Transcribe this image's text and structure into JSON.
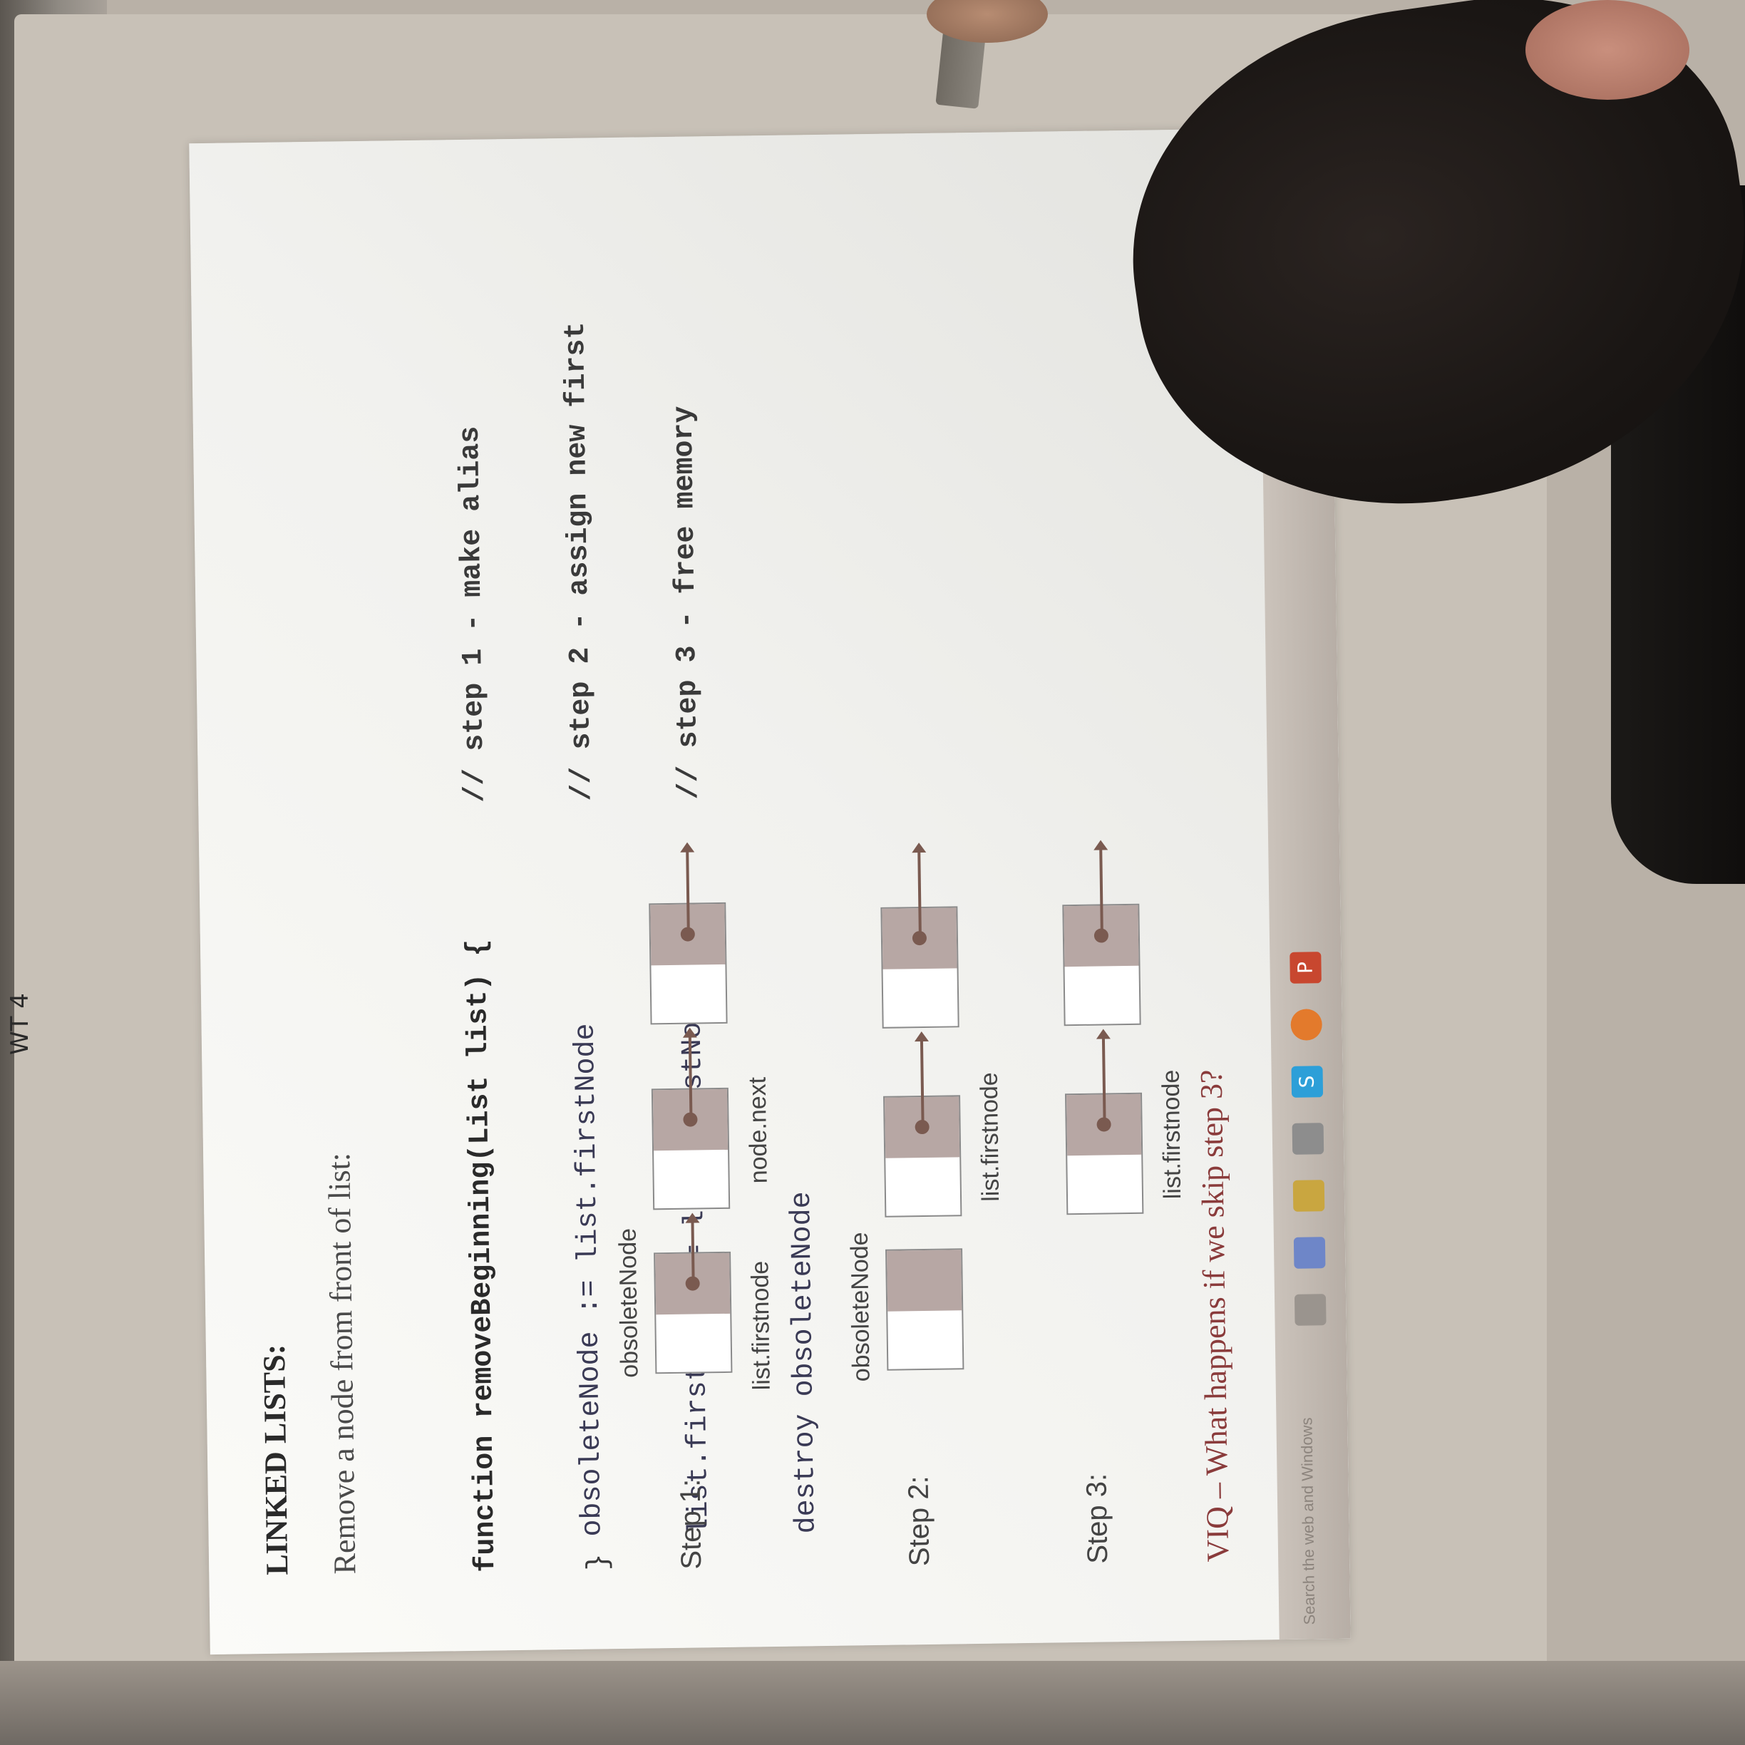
{
  "slide": {
    "title": "LINKED LISTS:",
    "subtitle": "Remove a node from front of list:",
    "code_lines": [
      "function removeBeginning(List list) {",
      "  obsoleteNode := list.firstNode",
      "  list.firstNode := list.firstNode.next",
      "  destroy obsoleteNode"
    ],
    "comment_lines": [
      "// step 1 - make alias",
      "// step 2 - assign new first",
      "// step 3 - free memory"
    ],
    "close_brace": "}",
    "steps": [
      {
        "label": "Step 1:",
        "top_label": "obsoleteNode",
        "bottom_labels": [
          "list.firstnode",
          "node.next"
        ]
      },
      {
        "label": "Step 2:",
        "top_label": "obsoleteNode",
        "bottom_labels": [
          "list.firstnode"
        ]
      },
      {
        "label": "Step 3:",
        "bottom_labels": [
          "list.firstnode"
        ]
      }
    ],
    "question": "VIQ – What happens if we skip step 3?"
  },
  "taskbar": {
    "search_text": "Search the web and Windows",
    "icons": [
      "task-view-icon",
      "edge-icon",
      "file-explorer-icon",
      "store-icon",
      "skype-icon",
      "firefox-icon",
      "powerpoint-icon"
    ],
    "skype_glyph": "S",
    "powerpoint_glyph": "P"
  },
  "handwriting": "WT 4",
  "colors": {
    "node_pointer": "#b7a7a4",
    "arrow": "#7a5a50",
    "question": "#8a3b3b"
  }
}
